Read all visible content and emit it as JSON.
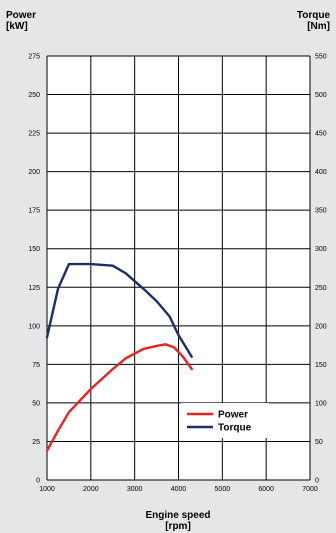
{
  "chart_data": {
    "type": "line",
    "left_axis_title": "Power\n[kW]",
    "right_axis_title": "Torque\n[Nm]",
    "x_axis_title": "Engine speed\n[rpm]",
    "x_ticks": [
      1000,
      2000,
      3000,
      4000,
      5000,
      6000,
      7000
    ],
    "left_ticks": [
      0,
      25,
      50,
      75,
      100,
      125,
      150,
      175,
      200,
      225,
      250,
      275
    ],
    "right_ticks": [
      0,
      50,
      100,
      150,
      200,
      250,
      300,
      350,
      400,
      450,
      500,
      550
    ],
    "xlim": [
      1000,
      7000
    ],
    "ylim_left": [
      0,
      275
    ],
    "ylim_right": [
      0,
      550
    ],
    "grid": true,
    "legend_position": "lower-center-right",
    "series": [
      {
        "name": "Power",
        "axis": "left",
        "color": "#e42522",
        "x": [
          1000,
          1250,
          1500,
          2000,
          2500,
          2800,
          3200,
          3500,
          3700,
          3900,
          4100,
          4300
        ],
        "values": [
          19,
          32,
          44,
          59,
          72,
          79,
          85,
          87,
          88,
          86,
          80,
          72
        ]
      },
      {
        "name": "Torque",
        "axis": "right",
        "color": "#1d2c6b",
        "x": [
          1000,
          1250,
          1500,
          2000,
          2500,
          2800,
          3200,
          3500,
          3800,
          4000,
          4300
        ],
        "values": [
          185,
          248,
          280,
          280,
          278,
          268,
          248,
          232,
          212,
          188,
          160
        ]
      }
    ]
  }
}
